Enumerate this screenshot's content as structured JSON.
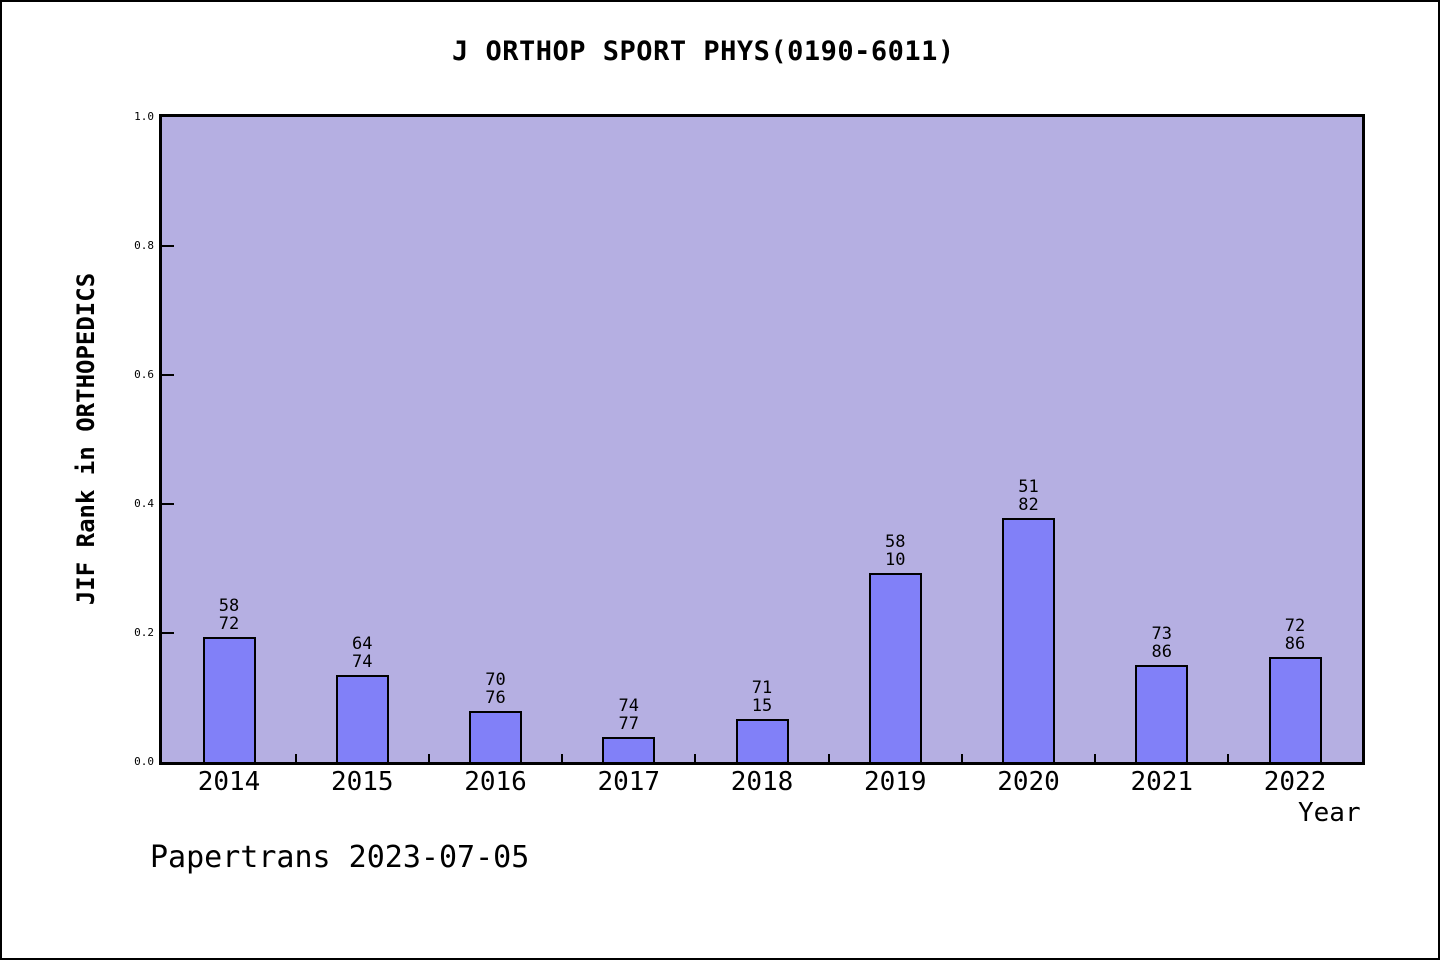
{
  "header": {
    "title": "J ORTHOP SPORT PHYS(0190-6011)"
  },
  "footer": {
    "text": "Papertrans 2023-07-05"
  },
  "chart_data": {
    "type": "bar",
    "title": "J ORTHOP SPORT PHYS(0190-6011)",
    "xlabel": "Year",
    "ylabel": "JIF Rank in ORTHOPEDICS",
    "categories": [
      "2014",
      "2015",
      "2016",
      "2017",
      "2018",
      "2019",
      "2020",
      "2021",
      "2022"
    ],
    "values": [
      0.194,
      0.135,
      0.079,
      0.039,
      0.066,
      0.293,
      0.378,
      0.151,
      0.163
    ],
    "bar_labels": [
      [
        "58",
        "72"
      ],
      [
        "64",
        "74"
      ],
      [
        "70",
        "76"
      ],
      [
        "74",
        "77"
      ],
      [
        "71",
        "15"
      ],
      [
        "58",
        "10"
      ],
      [
        "51",
        "82"
      ],
      [
        "73",
        "86"
      ],
      [
        "72",
        "86"
      ]
    ],
    "ylim": [
      0.0,
      1.0
    ],
    "yticks": [
      0.0,
      0.2,
      0.4,
      0.6,
      0.8,
      1.0
    ],
    "ytick_labels": [
      "0.0",
      "0.2",
      "0.4",
      "0.6",
      "0.8",
      "1.0"
    ],
    "grid": false,
    "legend": null,
    "colors": {
      "bar_fill": "#8180f8",
      "bar_border": "#000000",
      "plot_bg": "#b5afe2",
      "axis": "#000000",
      "text": "#000000",
      "page_bg": "#ffffff"
    }
  }
}
